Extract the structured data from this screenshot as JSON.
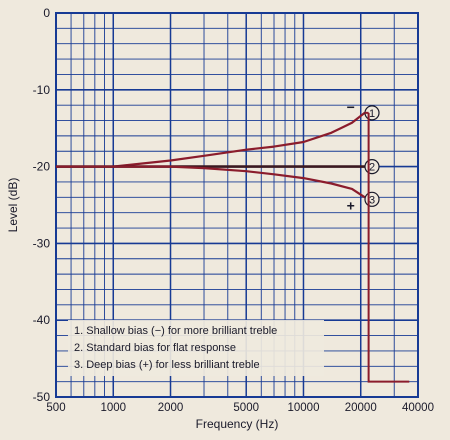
{
  "chart_data": {
    "type": "line",
    "xlabel": "Frequency (Hz)",
    "ylabel": "Level (dB)",
    "x_scale": "log",
    "xlim": [
      500,
      40000
    ],
    "ylim": [
      -50,
      0
    ],
    "x_ticks": [
      500,
      1000,
      2000,
      5000,
      10000,
      20000,
      40000
    ],
    "x_tick_labels": [
      "500",
      "1000",
      "2000",
      "5000",
      "10000",
      "20000",
      "40000"
    ],
    "y_ticks": [
      0,
      -10,
      -20,
      -30,
      -40,
      -50
    ],
    "y_tick_labels": [
      "0",
      "-10",
      "-20",
      "-30",
      "-40",
      "-50"
    ],
    "grid": true,
    "series": [
      {
        "marker": "1",
        "sign": "−",
        "x": [
          500,
          1000,
          2000,
          3000,
          5000,
          7000,
          10000,
          14000,
          18000,
          21000
        ],
        "y": [
          -20,
          -20,
          -19.2,
          -18.6,
          -17.8,
          -17.4,
          -16.8,
          -15.6,
          -14.3,
          -13
        ]
      },
      {
        "marker": "2",
        "x": [
          500,
          1000,
          2000,
          5000,
          10000,
          20000,
          21000
        ],
        "y": [
          -20,
          -20,
          -20,
          -20,
          -20,
          -20,
          -20
        ]
      },
      {
        "marker": "3",
        "sign": "+",
        "x": [
          500,
          1000,
          2000,
          3000,
          5000,
          7000,
          10000,
          14000,
          18000,
          21000
        ],
        "y": [
          -20,
          -20,
          -20,
          -20.2,
          -20.6,
          -21,
          -21.5,
          -22.2,
          -22.9,
          -24
        ]
      }
    ],
    "cutoff": {
      "x": 22000,
      "y_floor": -48,
      "x_end": 36000
    },
    "legend": {
      "placement": "bottom-left",
      "items": [
        "1. Shallow bias (−) for more brilliant treble",
        "2. Standard bias for flat response",
        "3. Deep bias (+) for less brilliant treble"
      ]
    },
    "colors": {
      "grid": "#173a94",
      "curve": "#8b1c2c",
      "flat_line": "#3a1820",
      "text": "#1a1a2a",
      "background": "#efe9dd"
    }
  }
}
